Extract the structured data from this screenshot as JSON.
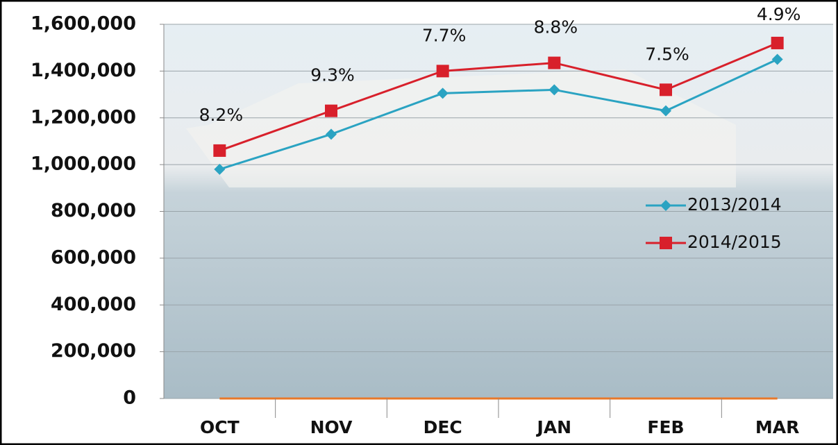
{
  "chart_data": {
    "type": "line",
    "categories": [
      "OCT",
      "NOV",
      "DEC",
      "JAN",
      "FEB",
      "MAR"
    ],
    "series": [
      {
        "name": "2013/2014",
        "color": "#2aa3c2",
        "marker": "diamond",
        "values": [
          980000,
          1130000,
          1305000,
          1320000,
          1230000,
          1450000
        ]
      },
      {
        "name": "2014/2015",
        "color": "#d8202b",
        "marker": "square",
        "values": [
          1060000,
          1230000,
          1400000,
          1435000,
          1320000,
          1520000
        ]
      }
    ],
    "annotations": [
      "8.2%",
      "9.3%",
      "7.7%",
      "8.8%",
      "7.5%",
      "4.9%"
    ],
    "ylim": [
      0,
      1600000
    ],
    "yticks": [
      {
        "value": 0,
        "label": "0"
      },
      {
        "value": 200000,
        "label": "200,000"
      },
      {
        "value": 400000,
        "label": "400,000"
      },
      {
        "value": 600000,
        "label": "600,000"
      },
      {
        "value": 800000,
        "label": "800,000"
      },
      {
        "value": 1000000,
        "label": "1,000,000"
      },
      {
        "value": 1200000,
        "label": "1,200,000"
      },
      {
        "value": 1400000,
        "label": "1,400,000"
      },
      {
        "value": 1600000,
        "label": "1,600,000"
      }
    ],
    "grid": true,
    "legend": "right"
  }
}
